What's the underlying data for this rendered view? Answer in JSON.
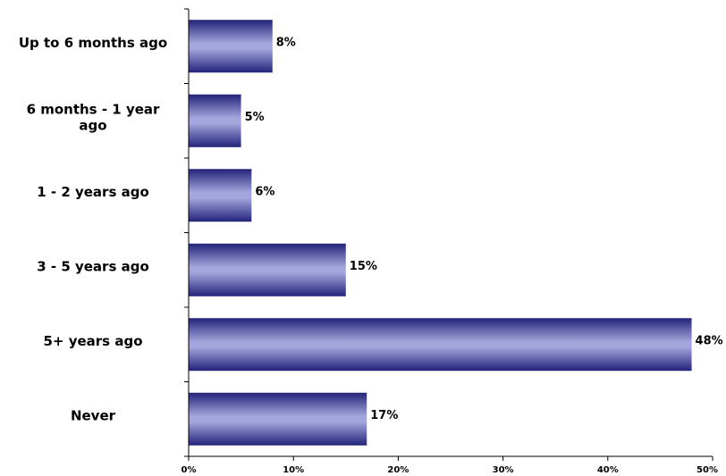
{
  "chart_data": {
    "type": "bar",
    "orientation": "horizontal",
    "categories": [
      "Up to 6 months ago",
      "6 months - 1 year ago",
      "1 - 2 years ago",
      "3 - 5 years ago",
      "5+ years ago",
      "Never"
    ],
    "values": [
      8,
      5,
      6,
      15,
      48,
      17
    ],
    "value_labels": [
      "8%",
      "5%",
      "6%",
      "15%",
      "48%",
      "17%"
    ],
    "title": "",
    "xlabel": "",
    "ylabel": "",
    "xlim": [
      0,
      50
    ],
    "x_ticks": [
      0,
      10,
      20,
      30,
      40,
      50
    ],
    "x_tick_labels": [
      "0%",
      "10%",
      "20%",
      "30%",
      "40%",
      "50%"
    ],
    "grid": false,
    "legend": "none",
    "colors": {
      "bar_edge": "#23237a",
      "bar_mid": "#a4a6dd",
      "axis": "#000000",
      "text": "#000000"
    }
  }
}
